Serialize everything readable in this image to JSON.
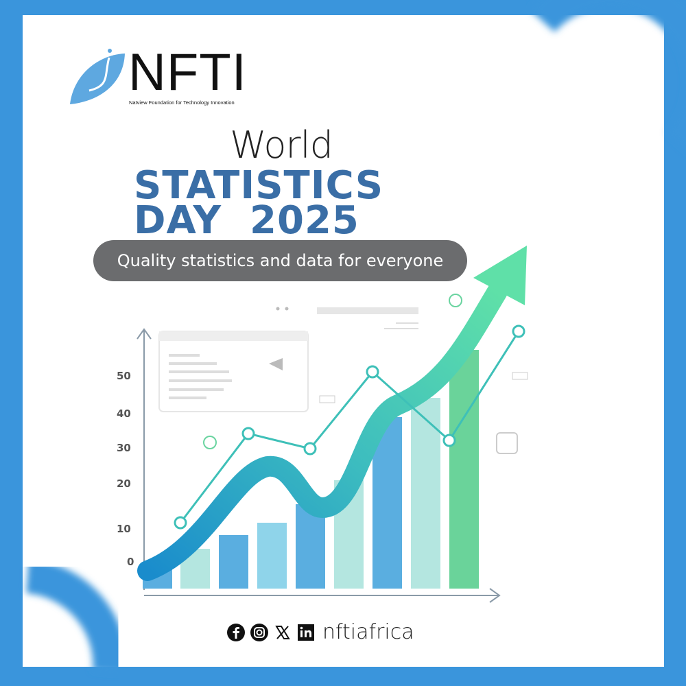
{
  "logo": {
    "name": "NFTI",
    "tagline": "Natview Foundation for Technology Innovation"
  },
  "title": {
    "line1": "World",
    "line2": "STATISTICS",
    "line3": "DAY  2025"
  },
  "subtitle": "Quality statistics and data for everyone",
  "illustration": {
    "y_ticks": [
      "50",
      "40",
      "30",
      "20",
      "10",
      "0"
    ]
  },
  "footer": {
    "icons": [
      "facebook-icon",
      "instagram-icon",
      "x-icon",
      "linkedin-icon"
    ],
    "handle": "nftiafrica"
  },
  "colors": {
    "frame": "#3a95dc",
    "title_blue": "#3a6ea6",
    "pill": "#6b6c6e",
    "arrow": "#4fd4b0"
  }
}
